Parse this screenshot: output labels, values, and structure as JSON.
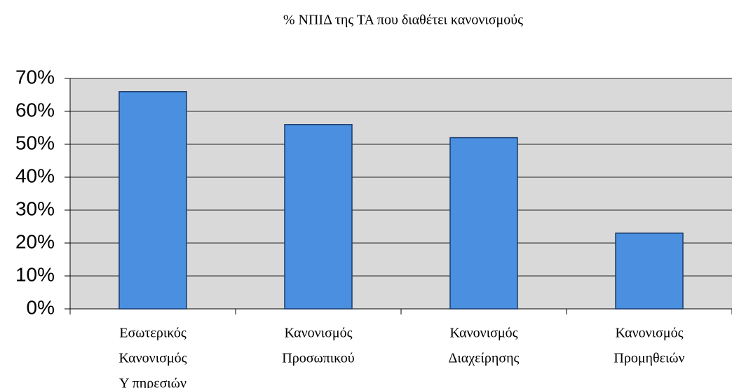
{
  "chart_data": {
    "type": "bar",
    "title": "% ΝΠΙΔ της ΤΑ που διαθέτει κανονισμούς",
    "categories": [
      [
        "Εσωτερικός",
        "Κανονισμός",
        "Υ πηρεσιών"
      ],
      [
        "Κανονισμός",
        "Προσωπικού"
      ],
      [
        "Κανονισμός",
        "Διαχείρησης"
      ],
      [
        "Κανονισμός",
        "Προμηθειών"
      ]
    ],
    "values": [
      66,
      56,
      52,
      23
    ],
    "color": "#4a8fe0",
    "ylim": [
      0,
      70
    ],
    "yticks": [
      {
        "value": 0,
        "label": "0%"
      },
      {
        "value": 10,
        "label": "10%"
      },
      {
        "value": 20,
        "label": "20%"
      },
      {
        "value": 30,
        "label": "30%"
      },
      {
        "value": 40,
        "label": "40%"
      },
      {
        "value": 50,
        "label": "50%"
      },
      {
        "value": 60,
        "label": "60%"
      },
      {
        "value": 70,
        "label": "70%"
      }
    ],
    "grid": true
  }
}
